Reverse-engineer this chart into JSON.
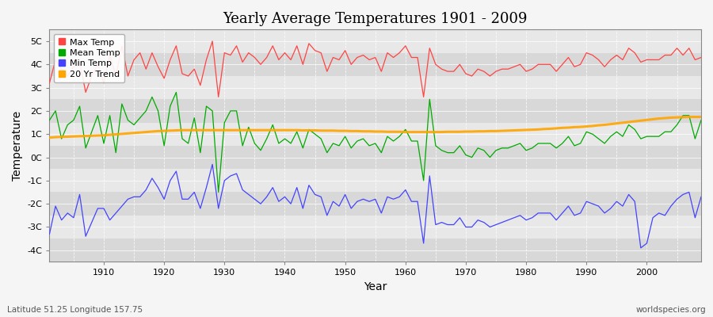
{
  "title": "Yearly Average Temperatures 1901 - 2009",
  "xlabel": "Year",
  "ylabel": "Temperature",
  "bottom_left": "Latitude 51.25 Longitude 157.75",
  "bottom_right": "worldspecies.org",
  "years": [
    1901,
    1902,
    1903,
    1904,
    1905,
    1906,
    1907,
    1908,
    1909,
    1910,
    1911,
    1912,
    1913,
    1914,
    1915,
    1916,
    1917,
    1918,
    1919,
    1920,
    1921,
    1922,
    1923,
    1924,
    1925,
    1926,
    1927,
    1928,
    1929,
    1930,
    1931,
    1932,
    1933,
    1934,
    1935,
    1936,
    1937,
    1938,
    1939,
    1940,
    1941,
    1942,
    1943,
    1944,
    1945,
    1946,
    1947,
    1948,
    1949,
    1950,
    1951,
    1952,
    1953,
    1954,
    1955,
    1956,
    1957,
    1958,
    1959,
    1960,
    1961,
    1962,
    1963,
    1964,
    1965,
    1966,
    1967,
    1968,
    1969,
    1970,
    1971,
    1972,
    1973,
    1974,
    1975,
    1976,
    1977,
    1978,
    1979,
    1980,
    1981,
    1982,
    1983,
    1984,
    1985,
    1986,
    1987,
    1988,
    1989,
    1990,
    1991,
    1992,
    1993,
    1994,
    1995,
    1996,
    1997,
    1998,
    1999,
    2000,
    2001,
    2002,
    2003,
    2004,
    2005,
    2006,
    2007,
    2008,
    2009
  ],
  "max_temp": [
    3.2,
    4.2,
    3.8,
    3.5,
    3.9,
    4.1,
    2.8,
    3.5,
    4.0,
    3.2,
    4.4,
    3.5,
    4.8,
    3.5,
    4.2,
    4.5,
    3.8,
    4.5,
    3.9,
    3.4,
    4.2,
    4.8,
    3.6,
    3.5,
    3.8,
    3.1,
    4.2,
    5.0,
    2.6,
    4.5,
    4.4,
    4.8,
    4.1,
    4.5,
    4.3,
    4.0,
    4.3,
    4.8,
    4.2,
    4.5,
    4.2,
    4.8,
    4.0,
    4.9,
    4.6,
    4.5,
    3.7,
    4.3,
    4.2,
    4.6,
    4.0,
    4.3,
    4.4,
    4.2,
    4.3,
    3.7,
    4.5,
    4.3,
    4.5,
    4.8,
    4.3,
    4.3,
    2.6,
    4.7,
    4.0,
    3.8,
    3.7,
    3.7,
    4.0,
    3.6,
    3.5,
    3.8,
    3.7,
    3.5,
    3.7,
    3.8,
    3.8,
    3.9,
    4.0,
    3.7,
    3.8,
    4.0,
    4.0,
    4.0,
    3.7,
    4.0,
    4.3,
    3.9,
    4.0,
    4.5,
    4.4,
    4.2,
    3.9,
    4.2,
    4.4,
    4.2,
    4.7,
    4.5,
    4.1,
    4.2,
    4.2,
    4.2,
    4.4,
    4.4,
    4.7,
    4.4,
    4.7,
    4.2,
    4.3
  ],
  "mean_temp": [
    1.6,
    2.0,
    0.8,
    1.4,
    1.6,
    2.2,
    0.4,
    1.1,
    1.8,
    0.6,
    1.8,
    0.2,
    2.3,
    1.6,
    1.4,
    1.7,
    2.0,
    2.6,
    2.0,
    0.5,
    2.2,
    2.8,
    0.8,
    0.6,
    1.7,
    0.2,
    2.2,
    2.0,
    -1.5,
    1.5,
    2.0,
    2.0,
    0.5,
    1.3,
    0.6,
    0.3,
    0.8,
    1.4,
    0.6,
    0.8,
    0.6,
    1.1,
    0.4,
    1.2,
    1.0,
    0.8,
    0.2,
    0.6,
    0.5,
    0.9,
    0.4,
    0.7,
    0.8,
    0.5,
    0.6,
    0.2,
    0.9,
    0.7,
    0.9,
    1.2,
    0.7,
    0.7,
    -1.0,
    2.5,
    0.5,
    0.3,
    0.2,
    0.2,
    0.5,
    0.1,
    0.0,
    0.4,
    0.3,
    0.0,
    0.3,
    0.4,
    0.4,
    0.5,
    0.6,
    0.3,
    0.4,
    0.6,
    0.6,
    0.6,
    0.4,
    0.6,
    0.9,
    0.5,
    0.6,
    1.1,
    1.0,
    0.8,
    0.6,
    0.9,
    1.1,
    0.9,
    1.4,
    1.2,
    0.8,
    0.9,
    0.9,
    0.9,
    1.1,
    1.1,
    1.4,
    1.8,
    1.8,
    0.8,
    1.6
  ],
  "min_temp": [
    -3.3,
    -2.1,
    -2.7,
    -2.4,
    -2.6,
    -1.6,
    -3.4,
    -2.8,
    -2.2,
    -2.2,
    -2.7,
    -2.4,
    -2.1,
    -1.8,
    -1.7,
    -1.7,
    -1.4,
    -0.9,
    -1.3,
    -1.8,
    -1.0,
    -0.6,
    -1.8,
    -1.8,
    -1.5,
    -2.2,
    -1.3,
    -0.3,
    -2.2,
    -1.0,
    -0.8,
    -0.7,
    -1.4,
    -1.6,
    -1.8,
    -2.0,
    -1.7,
    -1.3,
    -1.9,
    -1.7,
    -2.0,
    -1.3,
    -2.2,
    -1.2,
    -1.6,
    -1.7,
    -2.5,
    -1.9,
    -2.1,
    -1.6,
    -2.2,
    -1.9,
    -1.8,
    -1.9,
    -1.8,
    -2.4,
    -1.7,
    -1.8,
    -1.7,
    -1.4,
    -1.9,
    -1.9,
    -3.7,
    -0.8,
    -2.9,
    -2.8,
    -2.9,
    -2.9,
    -2.6,
    -3.0,
    -3.0,
    -2.7,
    -2.8,
    -3.0,
    -2.9,
    -2.8,
    -2.7,
    -2.6,
    -2.5,
    -2.7,
    -2.6,
    -2.4,
    -2.4,
    -2.4,
    -2.7,
    -2.4,
    -2.1,
    -2.5,
    -2.4,
    -1.9,
    -2.0,
    -2.1,
    -2.4,
    -2.2,
    -1.9,
    -2.1,
    -1.6,
    -1.9,
    -3.9,
    -3.7,
    -2.6,
    -2.4,
    -2.5,
    -2.1,
    -1.8,
    -1.6,
    -1.5,
    -2.6,
    -1.7
  ],
  "trend": [
    0.85,
    0.87,
    0.88,
    0.89,
    0.9,
    0.91,
    0.92,
    0.93,
    0.94,
    0.95,
    0.97,
    0.99,
    1.01,
    1.03,
    1.05,
    1.07,
    1.09,
    1.11,
    1.13,
    1.14,
    1.15,
    1.16,
    1.17,
    1.17,
    1.17,
    1.17,
    1.17,
    1.17,
    1.17,
    1.17,
    1.17,
    1.17,
    1.17,
    1.17,
    1.17,
    1.17,
    1.17,
    1.17,
    1.17,
    1.17,
    1.17,
    1.17,
    1.16,
    1.16,
    1.16,
    1.15,
    1.15,
    1.15,
    1.14,
    1.14,
    1.13,
    1.13,
    1.12,
    1.12,
    1.11,
    1.11,
    1.1,
    1.1,
    1.1,
    1.09,
    1.09,
    1.09,
    1.09,
    1.09,
    1.09,
    1.09,
    1.1,
    1.1,
    1.1,
    1.11,
    1.11,
    1.12,
    1.12,
    1.13,
    1.13,
    1.14,
    1.15,
    1.16,
    1.17,
    1.18,
    1.19,
    1.2,
    1.22,
    1.23,
    1.25,
    1.27,
    1.28,
    1.3,
    1.31,
    1.33,
    1.35,
    1.38,
    1.4,
    1.43,
    1.46,
    1.49,
    1.52,
    1.55,
    1.58,
    1.61,
    1.64,
    1.67,
    1.69,
    1.71,
    1.72,
    1.73,
    1.74,
    1.74,
    1.74
  ],
  "trend_color": "#FFA500",
  "max_color": "#FF4444",
  "mean_color": "#00AA00",
  "min_color": "#4444FF",
  "bg_color": "#F5F5F5",
  "plot_bg_light": "#E8E8E8",
  "plot_bg_dark": "#D8D8D8",
  "ylim": [
    -4.5,
    5.5
  ],
  "yticks": [
    -4,
    -3,
    -2,
    -1,
    0,
    1,
    2,
    3,
    4,
    5
  ],
  "ytick_labels": [
    "-4C",
    "-3C",
    "-2C",
    "-1C",
    "0C",
    "1C",
    "2C",
    "3C",
    "4C",
    "5C"
  ],
  "band_edges": [
    -4.5,
    -3.5,
    -2.5,
    -1.5,
    -0.5,
    0.5,
    1.5,
    2.5,
    3.5,
    4.5,
    5.5
  ]
}
